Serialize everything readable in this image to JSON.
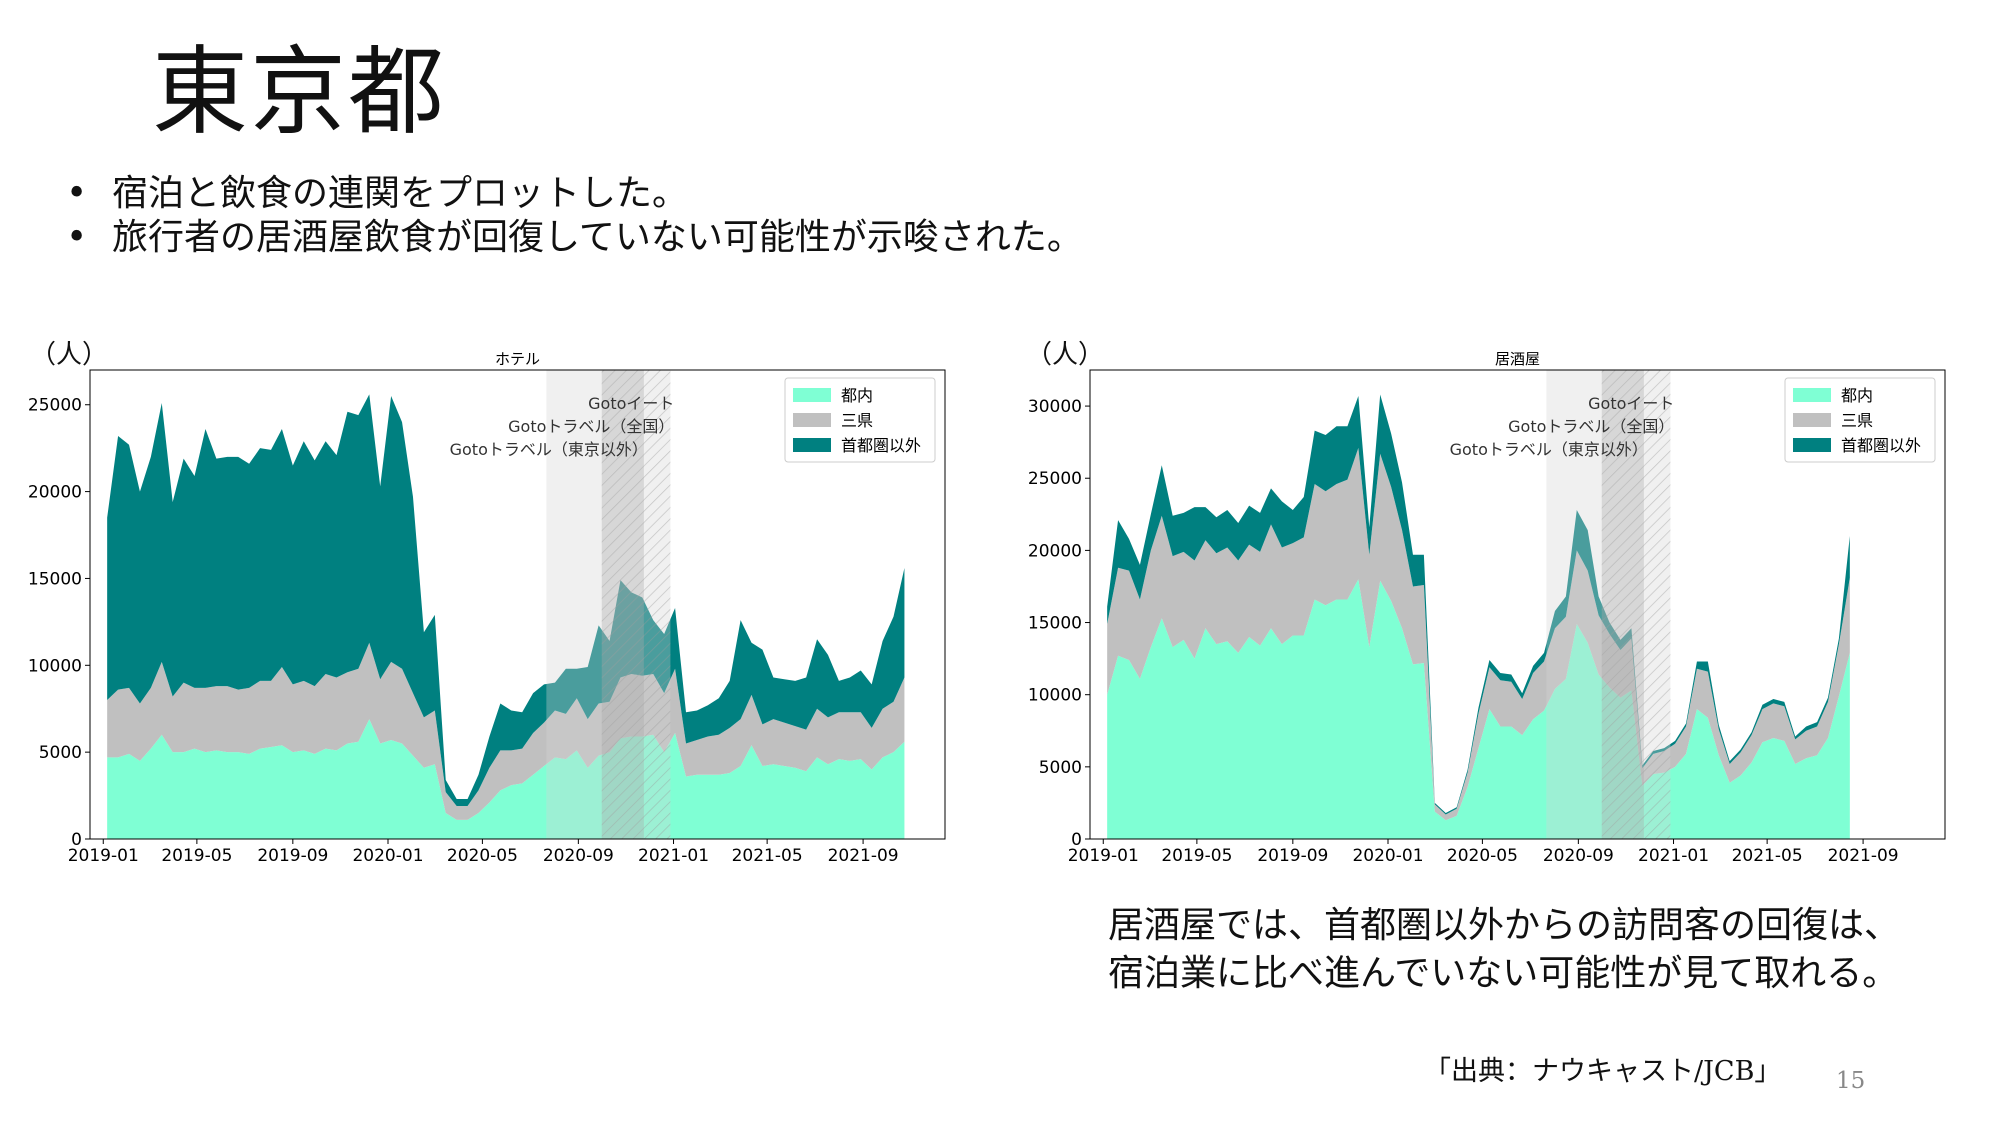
{
  "page": {
    "title": "東京都",
    "bullets": [
      "宿泊と飲食の連関をプロットした。",
      "旅行者の居酒屋飲食が回復していない可能性が示唆された。"
    ],
    "bullet_marker": "•",
    "note_lines": [
      "居酒屋では、首都圏以外からの訪問客の回復は、",
      "宿泊業に比べ進んでいない可能性が見て取れる。"
    ],
    "source": "「出典：ナウキャスト/JCB」",
    "page_number": "15"
  },
  "colors": {
    "tonai": "#7fffd4",
    "sanken": "#c0c0c0",
    "other": "#008080"
  },
  "chart_data": [
    {
      "type": "area",
      "title": "ホテル",
      "unit_label": "（人）",
      "x_start": "2019-01-06",
      "x_step_days": 14,
      "xlim": [
        "2018-12-15",
        "2021-12-15"
      ],
      "ylim": [
        0,
        27000
      ],
      "yticks": [
        0,
        5000,
        10000,
        15000,
        20000,
        25000
      ],
      "xticks": [
        {
          "date": "2019-01-01",
          "label": "2019-01"
        },
        {
          "date": "2019-05-01",
          "label": "2019-05"
        },
        {
          "date": "2019-09-01",
          "label": "2019-09"
        },
        {
          "date": "2020-01-01",
          "label": "2020-01"
        },
        {
          "date": "2020-05-01",
          "label": "2020-05"
        },
        {
          "date": "2020-09-01",
          "label": "2020-09"
        },
        {
          "date": "2021-01-01",
          "label": "2021-01"
        },
        {
          "date": "2021-05-01",
          "label": "2021-05"
        },
        {
          "date": "2021-09-01",
          "label": "2021-09"
        }
      ],
      "periods": [
        {
          "label": "Gotoイート",
          "start": "2020-07-22",
          "end": "2020-12-28",
          "style": "light"
        },
        {
          "label": "Gotoトラベル（全国）",
          "start": "2020-10-01",
          "end": "2020-12-28",
          "style": "hatch"
        },
        {
          "label": "Gotoトラベル（東京以外）",
          "start": "2020-10-01",
          "end": "2020-11-24",
          "style": "dark"
        }
      ],
      "legend": {
        "position": "upper right"
      },
      "series": [
        {
          "name": "都内",
          "color": "#7fffd4",
          "values": [
            4700,
            4700,
            4900,
            4500,
            5200,
            6000,
            5000,
            5000,
            5200,
            5000,
            5100,
            5000,
            5000,
            4900,
            5200,
            5300,
            5400,
            5000,
            5100,
            4900,
            5200,
            5100,
            5500,
            5600,
            6900,
            5500,
            5700,
            5500,
            4800,
            4100,
            4300,
            1500,
            1100,
            1100,
            1500,
            2100,
            2800,
            3100,
            3200,
            3700,
            4200,
            4700,
            4600,
            5100,
            4100,
            4800,
            5000,
            5800,
            5900,
            5900,
            6000,
            5000,
            6100,
            3600,
            3700,
            3700,
            3700,
            3800,
            4200,
            5400,
            4200,
            4300,
            4200,
            4100,
            3900,
            4700,
            4300,
            4600,
            4500,
            4600,
            4000,
            4700,
            5000,
            5600
          ]
        },
        {
          "name": "三県",
          "color": "#c0c0c0",
          "values": [
            3300,
            3900,
            3800,
            3300,
            3500,
            4200,
            3200,
            4000,
            3500,
            3700,
            3700,
            3800,
            3600,
            3800,
            3900,
            3800,
            4500,
            3900,
            4000,
            3900,
            4300,
            4200,
            4100,
            4200,
            4400,
            3700,
            4500,
            4300,
            3600,
            2900,
            3100,
            1200,
            800,
            800,
            1300,
            2000,
            2300,
            2000,
            2000,
            2400,
            2500,
            2700,
            2600,
            3000,
            2800,
            3000,
            2900,
            3500,
            3600,
            3500,
            3500,
            3400,
            3700,
            1900,
            2000,
            2200,
            2300,
            2600,
            2700,
            2900,
            2400,
            2600,
            2500,
            2400,
            2400,
            2800,
            2700,
            2700,
            2800,
            2700,
            2400,
            2800,
            2900,
            3700
          ]
        },
        {
          "name": "首都圏以外",
          "color": "#008080",
          "values": [
            10500,
            14600,
            14000,
            12200,
            13300,
            14900,
            11200,
            12900,
            12200,
            14900,
            13100,
            13200,
            13400,
            12900,
            13400,
            13300,
            13700,
            12600,
            13800,
            13000,
            13400,
            12800,
            15000,
            14600,
            14300,
            11100,
            15300,
            14200,
            11300,
            4900,
            5500,
            700,
            400,
            400,
            900,
            1800,
            2700,
            2300,
            2100,
            2300,
            2200,
            1600,
            2600,
            1700,
            3000,
            4500,
            3500,
            5600,
            4700,
            4500,
            3100,
            3400,
            3500,
            1800,
            1700,
            1800,
            2100,
            2700,
            5700,
            3000,
            4300,
            2400,
            2500,
            2600,
            3000,
            4000,
            3600,
            1800,
            2000,
            2400,
            2500,
            3900,
            4900,
            6300
          ]
        }
      ]
    },
    {
      "type": "area",
      "title": "居酒屋",
      "unit_label": "（人）",
      "x_start": "2019-01-06",
      "x_step_days": 14,
      "xlim": [
        "2018-12-15",
        "2021-12-15"
      ],
      "ylim": [
        0,
        32500
      ],
      "yticks": [
        0,
        5000,
        10000,
        15000,
        20000,
        25000,
        30000
      ],
      "xticks": [
        {
          "date": "2019-01-01",
          "label": "2019-01"
        },
        {
          "date": "2019-05-01",
          "label": "2019-05"
        },
        {
          "date": "2019-09-01",
          "label": "2019-09"
        },
        {
          "date": "2020-01-01",
          "label": "2020-01"
        },
        {
          "date": "2020-05-01",
          "label": "2020-05"
        },
        {
          "date": "2020-09-01",
          "label": "2020-09"
        },
        {
          "date": "2021-01-01",
          "label": "2021-01"
        },
        {
          "date": "2021-05-01",
          "label": "2021-05"
        },
        {
          "date": "2021-09-01",
          "label": "2021-09"
        }
      ],
      "periods": [
        {
          "label": "Gotoイート",
          "start": "2020-07-22",
          "end": "2020-12-28",
          "style": "light"
        },
        {
          "label": "Gotoトラベル（全国）",
          "start": "2020-10-01",
          "end": "2020-12-28",
          "style": "hatch"
        },
        {
          "label": "Gotoトラベル（東京以外）",
          "start": "2020-10-01",
          "end": "2020-11-24",
          "style": "dark"
        }
      ],
      "legend": {
        "position": "upper right"
      },
      "series": [
        {
          "name": "都内",
          "color": "#7fffd4",
          "values": [
            10000,
            12700,
            12400,
            11100,
            13300,
            15300,
            13300,
            13800,
            12500,
            14600,
            13500,
            13700,
            12900,
            14000,
            13400,
            14600,
            13500,
            14100,
            14100,
            16600,
            16200,
            16600,
            16600,
            18000,
            13300,
            17900,
            16500,
            14600,
            12100,
            12200,
            1900,
            1300,
            1600,
            3600,
            6300,
            9000,
            7800,
            7800,
            7200,
            8300,
            8900,
            10400,
            11100,
            14900,
            13600,
            11400,
            10500,
            9800,
            10300,
            3700,
            4500,
            4600,
            5000,
            5900,
            9000,
            8400,
            5800,
            3900,
            4400,
            5300,
            6700,
            7000,
            6800,
            5200,
            5600,
            5800,
            7000,
            9900,
            12900
          ]
        },
        {
          "name": "三県",
          "color": "#c0c0c0",
          "values": [
            4900,
            6100,
            6200,
            5500,
            6700,
            7100,
            6300,
            6100,
            6800,
            6100,
            6300,
            6500,
            6400,
            6400,
            6500,
            7200,
            6700,
            6400,
            6800,
            8000,
            7900,
            8000,
            8300,
            9100,
            6400,
            8800,
            7900,
            6800,
            5400,
            5400,
            500,
            400,
            500,
            1000,
            2400,
            2900,
            3200,
            3100,
            2500,
            3200,
            3400,
            4200,
            4300,
            5100,
            5000,
            4100,
            3700,
            3300,
            3600,
            1200,
            1400,
            1500,
            1600,
            1900,
            2800,
            3200,
            1800,
            1300,
            1600,
            1900,
            2300,
            2400,
            2400,
            1700,
            1900,
            2000,
            2500,
            3600,
            5200
          ]
        },
        {
          "name": "首都圏以外",
          "color": "#008080",
          "values": [
            1200,
            3300,
            2200,
            2400,
            2500,
            3500,
            2800,
            2700,
            3700,
            2300,
            2500,
            2600,
            2600,
            2700,
            2700,
            2500,
            3200,
            2300,
            2800,
            3700,
            3900,
            4000,
            3700,
            3600,
            1900,
            4100,
            3700,
            3300,
            2200,
            2100,
            100,
            100,
            100,
            200,
            400,
            500,
            500,
            500,
            400,
            500,
            600,
            1200,
            1400,
            2800,
            2800,
            1300,
            800,
            700,
            700,
            200,
            200,
            200,
            200,
            200,
            500,
            700,
            300,
            200,
            200,
            200,
            300,
            300,
            300,
            200,
            300,
            300,
            300,
            400,
            2900
          ]
        }
      ]
    }
  ]
}
